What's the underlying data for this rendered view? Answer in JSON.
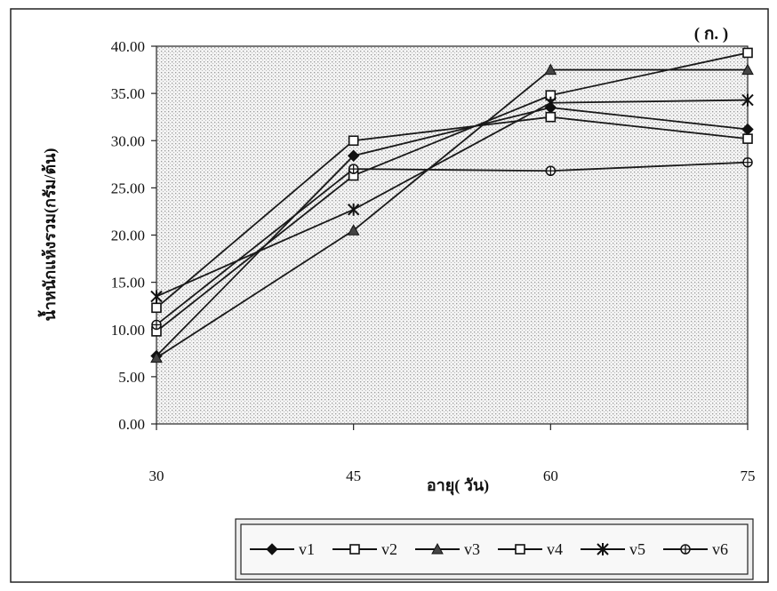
{
  "chart_data": {
    "type": "line",
    "panel_label": "( ก. )",
    "title": "",
    "xlabel": "อายุ( วัน)",
    "ylabel": "น้ำหนักแห้งรวม(กรัม/ต้น)",
    "x": [
      30,
      45,
      60,
      75
    ],
    "x_tick_labels": [
      "30",
      "45",
      "60",
      "75"
    ],
    "ylim": [
      0,
      40
    ],
    "y_ticks": [
      0,
      5,
      10,
      15,
      20,
      25,
      30,
      35,
      40
    ],
    "y_tick_labels": [
      "0.00",
      "5.00",
      "10.00",
      "15.00",
      "20.00",
      "25.00",
      "30.00",
      "35.00",
      "40.00"
    ],
    "grid": "dotted plot area, no gridlines",
    "legend_position": "bottom",
    "series": [
      {
        "name": "v1",
        "marker": "diamond",
        "values": [
          7.2,
          28.4,
          33.5,
          31.2
        ]
      },
      {
        "name": "v2",
        "marker": "square",
        "values": [
          12.3,
          30.0,
          32.5,
          30.2
        ]
      },
      {
        "name": "v3",
        "marker": "triangle",
        "values": [
          7.0,
          20.5,
          37.5,
          37.5
        ]
      },
      {
        "name": "v4",
        "marker": "square",
        "values": [
          9.8,
          26.3,
          34.8,
          39.3
        ]
      },
      {
        "name": "v5",
        "marker": "star",
        "values": [
          13.5,
          22.7,
          34.0,
          34.3
        ]
      },
      {
        "name": "v6",
        "marker": "circle",
        "values": [
          10.5,
          27.0,
          26.8,
          27.7
        ]
      }
    ]
  }
}
